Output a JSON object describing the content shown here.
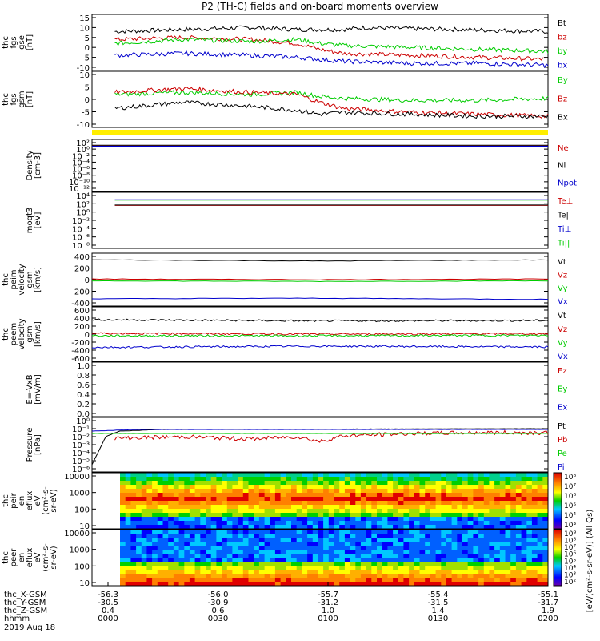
{
  "title": "P2 (TH-C) fields and on-board moments overview",
  "chart_data": [
    {
      "type": "line",
      "id": "fgs_gse",
      "ylabel": [
        "thc",
        "fgs",
        "gse",
        "[nT]"
      ],
      "yticks": [
        "15",
        "10",
        "5",
        "0",
        "-5",
        "-10"
      ],
      "ylim": [
        -10,
        15
      ],
      "series": [
        {
          "name": "Bt",
          "color": "#000000",
          "x": [
            0.05,
            0.2,
            0.35,
            0.45,
            0.5,
            0.55,
            0.6,
            0.8,
            1.0
          ],
          "values": [
            8,
            9,
            10,
            9,
            9,
            9,
            10,
            9,
            8
          ]
        },
        {
          "name": "bz",
          "color": "#cc0000",
          "x": [
            0.05,
            0.2,
            0.35,
            0.45,
            0.5,
            0.55,
            0.7,
            0.85,
            1.0
          ],
          "values": [
            4,
            5,
            4,
            2,
            -1,
            -3,
            -4,
            -5,
            -6
          ]
        },
        {
          "name": "by",
          "color": "#00cc00",
          "x": [
            0.05,
            0.2,
            0.35,
            0.45,
            0.5,
            0.55,
            0.7,
            0.85,
            1.0
          ],
          "values": [
            2,
            4,
            3,
            4,
            2,
            1,
            0,
            -1,
            -2
          ]
        },
        {
          "name": "bx",
          "color": "#0000cc",
          "x": [
            0.05,
            0.2,
            0.35,
            0.45,
            0.5,
            0.55,
            0.7,
            0.85,
            1.0
          ],
          "values": [
            -4,
            -3,
            -4,
            -5,
            -6,
            -7,
            -8,
            -8,
            -9
          ]
        }
      ]
    },
    {
      "type": "line",
      "id": "fgs_gsm",
      "ylabel": [
        "thc",
        "fgs",
        "gsm",
        "[nT]"
      ],
      "yticks": [
        "10",
        "5",
        "0",
        "-5",
        "-10"
      ],
      "ylim": [
        -13,
        12
      ],
      "series": [
        {
          "name": "By",
          "color": "#00cc00",
          "x": [
            0.05,
            0.2,
            0.35,
            0.45,
            0.5,
            0.55,
            0.7,
            0.85,
            1.0
          ],
          "values": [
            2,
            3,
            2,
            3,
            1,
            0,
            -1,
            -1,
            0
          ]
        },
        {
          "name": "Bz",
          "color": "#cc0000",
          "x": [
            0.05,
            0.2,
            0.35,
            0.45,
            0.5,
            0.55,
            0.7,
            0.85,
            1.0
          ],
          "values": [
            3,
            5,
            3,
            2,
            -2,
            -5,
            -7,
            -8,
            -9
          ]
        },
        {
          "name": "Bx",
          "color": "#000000",
          "x": [
            0.05,
            0.2,
            0.35,
            0.45,
            0.5,
            0.55,
            0.7,
            0.85,
            1.0
          ],
          "values": [
            -5,
            -2,
            -4,
            -6,
            -8,
            -7,
            -8,
            -9,
            -9
          ]
        }
      ]
    },
    {
      "type": "line",
      "id": "density",
      "ylabel": [
        "Density",
        "[cm-3]"
      ],
      "yticks": [
        "10²",
        "10⁰",
        "10⁻²",
        "10⁻⁴",
        "10⁻⁶",
        "10⁻⁸",
        "10⁻¹⁰",
        "10⁻¹²"
      ],
      "ylim": [
        -12,
        2
      ],
      "log": true,
      "series": [
        {
          "name": "Ne",
          "color": "#cc0000",
          "x": [
            0.0,
            1.0
          ],
          "values": [
            1.0,
            1.0
          ]
        },
        {
          "name": "Ni",
          "color": "#000000",
          "x": [
            0.0,
            1.0
          ],
          "values": [
            1.2,
            1.2
          ]
        },
        {
          "name": "Npot",
          "color": "#0000cc",
          "x": [
            0.0,
            1.0
          ],
          "values": [
            0.9,
            0.9
          ]
        }
      ]
    },
    {
      "type": "line",
      "id": "temperature",
      "ylabel": [
        "moqt3",
        "[eV]"
      ],
      "yticks": [
        "10⁴",
        "10²",
        "10⁰",
        "10⁻²",
        "10⁻⁴",
        "10⁻⁶",
        "10⁻⁸"
      ],
      "ylim": [
        -8,
        4
      ],
      "log": true,
      "series": [
        {
          "name": "Te⊥",
          "color": "#cc0000",
          "x": [
            0.05,
            1.0
          ],
          "values": [
            1.6,
            1.6
          ]
        },
        {
          "name": "Te||",
          "color": "#000000",
          "x": [
            0.05,
            1.0
          ],
          "values": [
            1.7,
            1.7
          ]
        },
        {
          "name": "Ti⊥",
          "color": "#0000cc",
          "x": [
            0.05,
            1.0
          ],
          "values": [
            3.0,
            3.0
          ]
        },
        {
          "name": "Ti||",
          "color": "#00cc00",
          "x": [
            0.05,
            1.0
          ],
          "values": [
            2.9,
            2.9
          ]
        }
      ]
    },
    {
      "type": "line",
      "id": "peim_velocity",
      "ylabel": [
        "thc",
        "peim",
        "velocity",
        "gsm",
        "[km/s]"
      ],
      "yticks": [
        "400",
        "200",
        "0",
        "-200",
        "-400"
      ],
      "ylim": [
        -400,
        400
      ],
      "series": [
        {
          "name": "Vt",
          "color": "#000000",
          "x": [
            0.0,
            0.3,
            0.5,
            0.7,
            1.0
          ],
          "values": [
            340,
            330,
            320,
            330,
            340
          ]
        },
        {
          "name": "Vz",
          "color": "#cc0000",
          "x": [
            0.0,
            0.5,
            1.0
          ],
          "values": [
            10,
            0,
            10
          ]
        },
        {
          "name": "Vy",
          "color": "#00cc00",
          "x": [
            0.0,
            0.5,
            1.0
          ],
          "values": [
            -20,
            -30,
            -20
          ]
        },
        {
          "name": "Vx",
          "color": "#0000cc",
          "x": [
            0.0,
            0.5,
            1.0
          ],
          "values": [
            -330,
            -320,
            -340
          ]
        }
      ]
    },
    {
      "type": "line",
      "id": "peem_velocity",
      "ylabel": [
        "thc",
        "peem",
        "velocity",
        "gsm",
        "[km/s]"
      ],
      "yticks": [
        "600",
        "400",
        "200",
        "0",
        "-200",
        "-400",
        "-600"
      ],
      "ylim": [
        -600,
        600
      ],
      "series": [
        {
          "name": "Vt",
          "color": "#000000",
          "x": [
            0.0,
            0.5,
            1.0
          ],
          "values": [
            360,
            330,
            340
          ]
        },
        {
          "name": "Vz",
          "color": "#cc0000",
          "x": [
            0.0,
            0.5,
            1.0
          ],
          "values": [
            20,
            0,
            10
          ]
        },
        {
          "name": "Vy",
          "color": "#00cc00",
          "x": [
            0.0,
            0.5,
            1.0
          ],
          "values": [
            -40,
            -40,
            -30
          ]
        },
        {
          "name": "Vx",
          "color": "#0000cc",
          "x": [
            0.0,
            0.5,
            1.0
          ],
          "values": [
            -330,
            -300,
            -320
          ]
        }
      ]
    },
    {
      "type": "line",
      "id": "efield",
      "ylabel": [
        "E=-VxB",
        "[mV/m]"
      ],
      "yticks": [
        "1.0",
        "0.8",
        "0.6",
        "0.4",
        "0.2",
        "0.0"
      ],
      "ylim": [
        0,
        1
      ],
      "series": [
        {
          "name": "Ez",
          "color": "#cc0000",
          "x": [],
          "values": []
        },
        {
          "name": "Ey",
          "color": "#00cc00",
          "x": [],
          "values": []
        },
        {
          "name": "Ex",
          "color": "#0000cc",
          "x": [],
          "values": []
        }
      ]
    },
    {
      "type": "line",
      "id": "pressure",
      "ylabel": [
        "Pressure",
        "[nPa]"
      ],
      "yticks": [
        "10⁰",
        "10⁻¹",
        "10⁻²",
        "10⁻³",
        "10⁻⁴",
        "10⁻⁵",
        "10⁻⁶"
      ],
      "ylim": [
        -6,
        0
      ],
      "log": true,
      "series": [
        {
          "name": "Pt",
          "color": "#000000",
          "x": [
            0.0,
            0.03,
            0.06,
            0.15,
            1.0
          ],
          "values": [
            -5.5,
            -2,
            -1.3,
            -1.1,
            -1.0
          ]
        },
        {
          "name": "Pb",
          "color": "#cc0000",
          "x": [
            0.05,
            0.2,
            0.35,
            0.45,
            0.5,
            0.55,
            0.7,
            0.85,
            1.0
          ],
          "values": [
            -2.2,
            -2,
            -2.3,
            -2.0,
            -2.6,
            -1.9,
            -1.6,
            -1.5,
            -1.5
          ]
        },
        {
          "name": "Pe",
          "color": "#00cc00",
          "x": [
            0.0,
            1.0
          ],
          "values": [
            -1.6,
            -1.6
          ]
        },
        {
          "name": "Pi",
          "color": "#0000cc",
          "x": [
            0.0,
            0.1,
            1.0
          ],
          "values": [
            -1.3,
            -1.1,
            -1.1
          ]
        }
      ]
    },
    {
      "type": "heatmap",
      "id": "peir_spectrogram",
      "ylabel": [
        "thc",
        "peir",
        "en",
        "eflux",
        "eV",
        "(cm²-s-",
        "sr-eV)"
      ],
      "yticks": [
        "10000",
        "1000",
        "100",
        "10"
      ],
      "log": true,
      "colorbar_ticks": [
        "10⁸",
        "10⁷",
        "10⁶",
        "10⁵",
        "10⁴",
        "10³"
      ]
    },
    {
      "type": "heatmap",
      "id": "peer_spectrogram",
      "ylabel": [
        "thc",
        "peer",
        "en",
        "eflux",
        "eV",
        "(cm²-s-",
        "sr-eV)"
      ],
      "yticks": [
        "10000",
        "1000",
        "100",
        "10"
      ],
      "log": true,
      "colorbar_ticks": [
        "10⁹",
        "10⁸",
        "10⁷",
        "10⁶",
        "10⁵",
        "10⁴",
        "10³",
        "10²"
      ]
    }
  ],
  "colorbar_label": "[eV/(cm²-s-sr-eV)] (All Qs)",
  "xaxis": {
    "rows": [
      {
        "label": "thc_X-GSM",
        "values": [
          "-56.3",
          "-56.0",
          "-55.7",
          "-55.4",
          "-55.1"
        ]
      },
      {
        "label": "thc_Y-GSM",
        "values": [
          "-30.5",
          "-30.9",
          "-31.2",
          "-31.5",
          "-31.7"
        ]
      },
      {
        "label": "thc_Z-GSM",
        "values": [
          "0.4",
          "0.6",
          "1.0",
          "1.4",
          "1.9"
        ]
      },
      {
        "label": "hhmm",
        "values": [
          "0000",
          "0030",
          "0100",
          "0130",
          "0200"
        ]
      }
    ],
    "date": "2019 Aug 18"
  }
}
